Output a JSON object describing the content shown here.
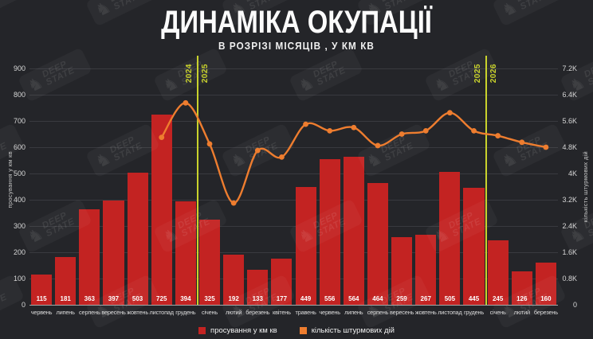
{
  "watermark": {
    "line1": "DEEP",
    "line2": "STATE",
    "knight_icon": "♞"
  },
  "chart_data": {
    "type": "combo-bar-line",
    "title": "ДИНАМІКА ОКУПАЦІЇ",
    "subtitle": "В РОЗРІЗІ МІСЯЦІВ , У КМ КВ",
    "categories": [
      "червень",
      "липень",
      "серпень",
      "вересень",
      "жовтень",
      "листопад",
      "грудень",
      "січень",
      "лютий",
      "березень",
      "квітень",
      "травень",
      "червень",
      "липень",
      "серпень",
      "вересень",
      "жовтень",
      "листопад",
      "грудень",
      "січень",
      "лютий",
      "березень"
    ],
    "series": [
      {
        "name": "просування у км кв",
        "type": "bar",
        "axis": "left",
        "color": "#c32322",
        "values": [
          115,
          181,
          363,
          397,
          503,
          725,
          394,
          325,
          192,
          133,
          177,
          449,
          556,
          564,
          464,
          259,
          267,
          505,
          445,
          245,
          126,
          160
        ]
      },
      {
        "name": "кількість штурмових дій",
        "type": "line",
        "axis": "right",
        "color": "#ee7d2f",
        "values": [
          null,
          null,
          null,
          null,
          null,
          5100,
          6150,
          4900,
          3100,
          4700,
          4500,
          5500,
          5300,
          5400,
          4850,
          5200,
          5300,
          5850,
          5300,
          5150,
          4950,
          4800
        ]
      }
    ],
    "left_axis": {
      "label": "просування у км кв",
      "min": 0,
      "max": 900,
      "tick_step": 100
    },
    "right_axis": {
      "label": "кількість штурмових дій",
      "min": 0,
      "max": 7200,
      "ticks": [
        {
          "v": 0,
          "label": "0"
        },
        {
          "v": 800,
          "label": "0.8K"
        },
        {
          "v": 1600,
          "label": "1.6K"
        },
        {
          "v": 2400,
          "label": "2.4K"
        },
        {
          "v": 3200,
          "label": "3.2K"
        },
        {
          "v": 4000,
          "label": "4K"
        },
        {
          "v": 4800,
          "label": "4.8K"
        },
        {
          "v": 5600,
          "label": "5.6K"
        },
        {
          "v": 6400,
          "label": "6.4K"
        },
        {
          "v": 7200,
          "label": "7.2K"
        }
      ]
    },
    "year_dividers": [
      {
        "after_index": 6,
        "left_label": "2024",
        "right_label": "2025"
      },
      {
        "after_index": 18,
        "left_label": "2025",
        "right_label": "2026"
      }
    ],
    "divider_color": "#c9d22c",
    "grid": true,
    "legend_position": "bottom"
  }
}
